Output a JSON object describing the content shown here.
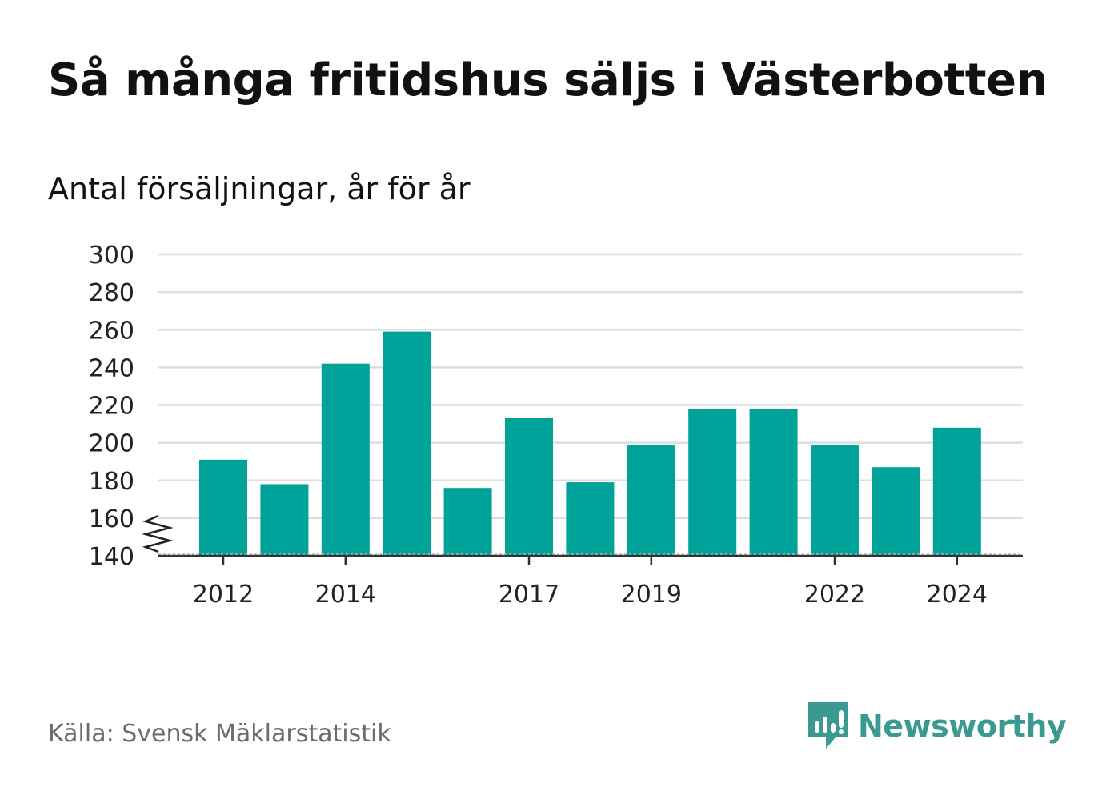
{
  "header": {
    "title": "Så många fritidshus säljs i Västerbotten",
    "subtitle": "Antal försäljningar, år för år"
  },
  "footer": {
    "source": "Källa: Svensk Mäklarstatistik",
    "brand": "Newsworthy",
    "brand_icon": "chat-bar-chart-icon"
  },
  "colors": {
    "bar": "#00a39a",
    "grid": "#dddddd",
    "axis": "#333333",
    "brand": "#3a9a92"
  },
  "chart_data": {
    "type": "bar",
    "categories": [
      "2012",
      "2013",
      "2014",
      "2015",
      "2016",
      "2017",
      "2018",
      "2019",
      "2020",
      "2021",
      "2022",
      "2023",
      "2024"
    ],
    "values": [
      191,
      178,
      242,
      259,
      176,
      213,
      179,
      199,
      218,
      218,
      199,
      187,
      208
    ],
    "x_tick_labels": [
      "2012",
      "2014",
      "2017",
      "2019",
      "2022",
      "2024"
    ],
    "y_ticks": [
      140,
      160,
      180,
      200,
      220,
      240,
      260,
      280,
      300
    ],
    "ylim": [
      140,
      300
    ],
    "axis_break": true,
    "grid": true,
    "legend": "none",
    "title": "Så många fritidshus säljs i Västerbotten",
    "subtitle": "Antal försäljningar, år för år",
    "xlabel": "",
    "ylabel": ""
  }
}
